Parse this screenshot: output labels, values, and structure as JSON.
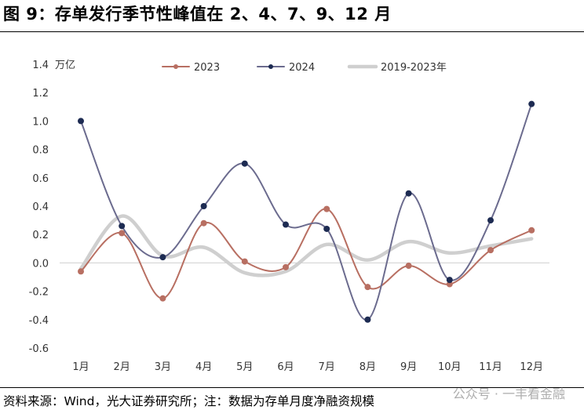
{
  "header": {
    "title": "图 9：存单发行季节性峰值在 2、4、7、9、12 月"
  },
  "footer": {
    "source": "资料来源：Wind，光大证券研究所；注：数据为存单月度净融资规模",
    "watermark": "公众号 · 一丰看金融"
  },
  "chart_data": {
    "type": "line",
    "ylabel": "万亿",
    "ylim": [
      -0.6,
      1.4
    ],
    "yticks": [
      1.4,
      1.2,
      1.0,
      0.8,
      0.6,
      0.4,
      0.2,
      0.0,
      -0.2,
      -0.4,
      -0.6
    ],
    "ytick_labels": [
      "1.4",
      "1.2",
      "1.0",
      "0.8",
      "0.6",
      "0.4",
      "0.2",
      "0.0",
      "-0.2",
      "-0.4",
      "-0.6"
    ],
    "categories": [
      "1月",
      "2月",
      "3月",
      "4月",
      "5月",
      "6月",
      "7月",
      "8月",
      "9月",
      "10月",
      "11月",
      "12月"
    ],
    "legend_position": "top",
    "grid": false,
    "series": [
      {
        "name": "2023",
        "color": "#b86f62",
        "markers": true,
        "values": [
          -0.06,
          0.21,
          -0.25,
          0.28,
          0.01,
          -0.03,
          0.38,
          -0.17,
          -0.02,
          -0.15,
          0.09,
          0.23
        ]
      },
      {
        "name": "2024",
        "color": "#6b6b8e",
        "markers": true,
        "marker_color": "#1d2b52",
        "values": [
          1.0,
          0.26,
          0.04,
          0.4,
          0.7,
          0.27,
          0.24,
          -0.4,
          0.49,
          -0.12,
          0.3,
          1.12
        ]
      },
      {
        "name": "2019-2023年",
        "color": "#cfcfcf",
        "markers": false,
        "values": [
          -0.04,
          0.33,
          0.05,
          0.11,
          -0.07,
          -0.06,
          0.13,
          0.02,
          0.15,
          0.07,
          0.12,
          0.17
        ]
      }
    ]
  }
}
